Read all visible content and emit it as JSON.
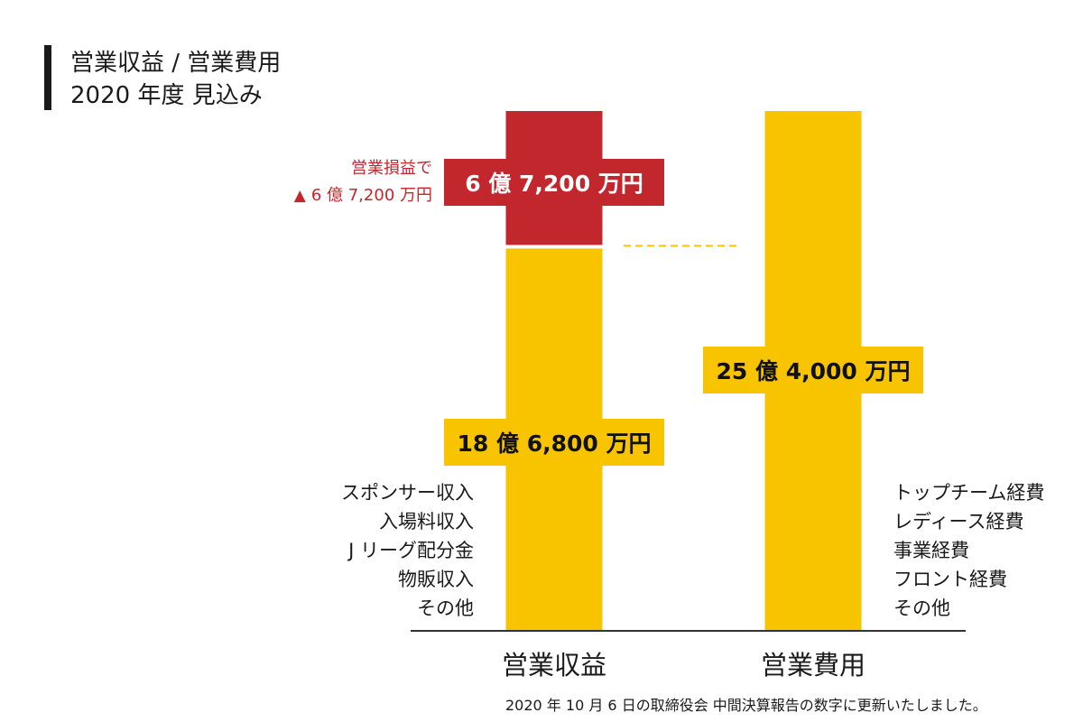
{
  "title": {
    "line1": "営業収益 / 営業費用",
    "line2": "2020 年度 見込み"
  },
  "colors": {
    "revenue": "#F8C400",
    "loss": "#C1272D",
    "expense": "#F8C400",
    "axis": "#333333",
    "connector": "#F8C400"
  },
  "chart_data": {
    "type": "bar",
    "unit": "万円",
    "categories": [
      "営業収益",
      "営業費用"
    ],
    "series": [
      {
        "name": "営業収益",
        "values": [
          186800,
          0
        ]
      },
      {
        "name": "営業損益",
        "values": [
          67200,
          0
        ]
      },
      {
        "name": "営業費用",
        "values": [
          0,
          254000
        ]
      }
    ],
    "data_labels": {
      "revenue": "18 億 6,800 万円",
      "loss": "6 億 7,200 万円",
      "expense": "25 億 4,000 万円"
    },
    "annotation": {
      "line1": "営業損益で",
      "symbol": "▲",
      "line2": "6 億 7,200 万円"
    },
    "ylim": [
      0,
      254000
    ],
    "grid": false,
    "legend": "none"
  },
  "revenue_items": [
    "スポンサー収入",
    "入場料収入",
    "J リーグ配分金",
    "物販収入",
    "その他"
  ],
  "expense_items": [
    "トップチーム経費",
    "レディース経費",
    "事業経費",
    "フロント経費",
    "その他"
  ],
  "footnote": "2020 年 10 月 6 日の取締役会 中間決算報告の数字に更新いたしました。"
}
